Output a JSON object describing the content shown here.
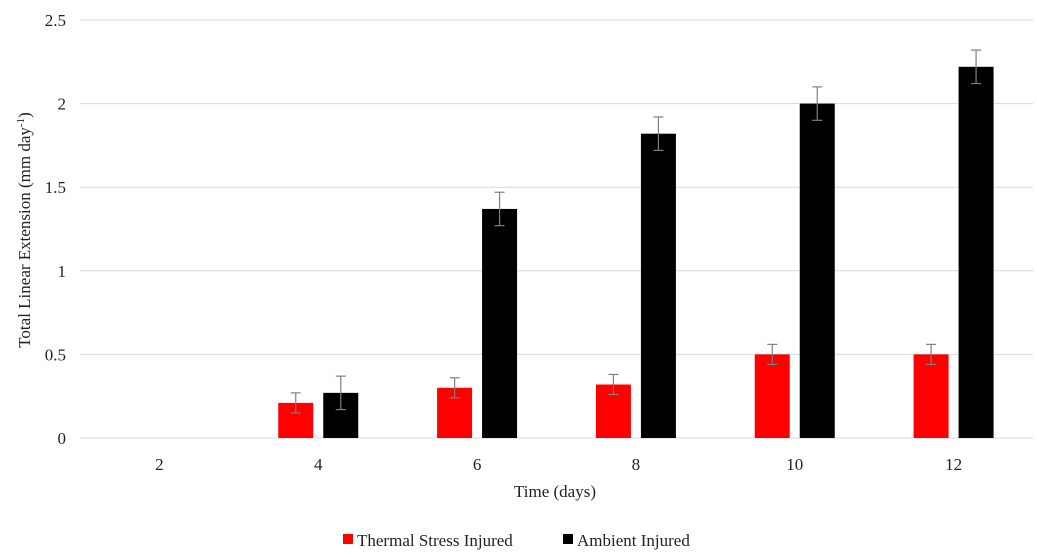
{
  "chart_data": {
    "type": "bar",
    "title": "",
    "xlabel": "Time (days)",
    "ylabel_main": "Total Linear Extension (mm day",
    "ylabel_sup": "-1",
    "ylabel_close": ")",
    "categories": [
      "2",
      "4",
      "6",
      "8",
      "10",
      "12"
    ],
    "ylim": [
      0,
      2.5
    ],
    "yticks": [
      0,
      0.5,
      1,
      1.5,
      2,
      2.5
    ],
    "ytick_labels": [
      "0",
      "0.5",
      "1",
      "1.5",
      "2",
      "2.5"
    ],
    "grid": true,
    "legend_position": "bottom",
    "series": [
      {
        "name": "Thermal Stress Injured",
        "color": "#ff0000",
        "values": [
          null,
          0.21,
          0.3,
          0.32,
          0.5,
          0.5
        ],
        "errors": [
          null,
          0.06,
          0.06,
          0.06,
          0.06,
          0.06
        ]
      },
      {
        "name": "Ambient Injured",
        "color": "#000000",
        "values": [
          null,
          0.27,
          1.37,
          1.82,
          2.0,
          2.22
        ],
        "errors": [
          null,
          0.1,
          0.1,
          0.1,
          0.1,
          0.1
        ]
      }
    ]
  }
}
